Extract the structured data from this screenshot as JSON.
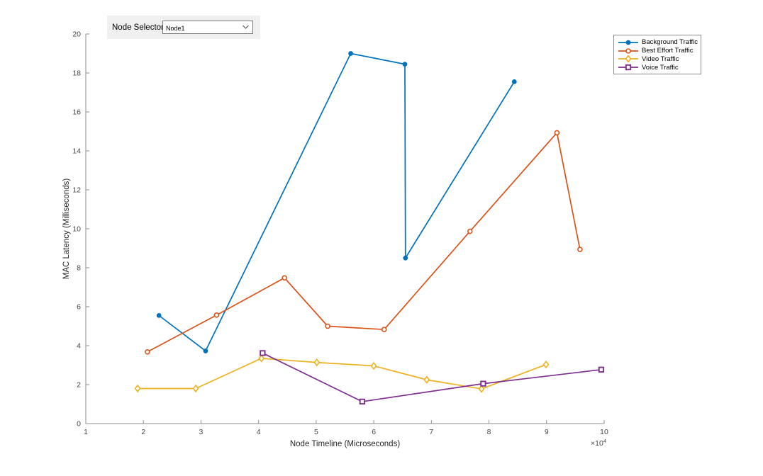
{
  "controls": {
    "node_selector_label": "Node Selector:",
    "node_selector_value": "Node1"
  },
  "chart_data": {
    "type": "line",
    "title": "",
    "xlabel": "Node Timeline (Microseconds)",
    "ylabel": "MAC Latency (Milliseconds)",
    "x_exponent": {
      "base": "×10",
      "power": "4"
    },
    "xlim": [
      1,
      10
    ],
    "ylim": [
      0,
      20
    ],
    "xticks": [
      1,
      2,
      3,
      4,
      5,
      6,
      7,
      8,
      9,
      10
    ],
    "yticks": [
      0,
      2,
      4,
      6,
      8,
      10,
      12,
      14,
      16,
      18,
      20
    ],
    "grid": false,
    "legend_position": "outside-top-right",
    "x_units_note": "x values are in units of 1e4 microseconds as labeled on the axis",
    "series": [
      {
        "name": "Background Traffic",
        "color": "#0072BD",
        "marker": "circle-filled",
        "x": [
          2.27,
          3.08,
          5.6,
          6.54,
          6.55,
          8.44
        ],
        "y": [
          5.55,
          3.73,
          19.0,
          18.45,
          8.5,
          17.55
        ]
      },
      {
        "name": "Best Effort Traffic",
        "color": "#D95319",
        "marker": "circle-open",
        "x": [
          2.07,
          3.27,
          4.45,
          5.2,
          6.18,
          7.67,
          9.18,
          9.58
        ],
        "y": [
          3.68,
          5.57,
          7.48,
          5.0,
          4.83,
          9.87,
          14.93,
          8.94
        ]
      },
      {
        "name": "Video Traffic",
        "color": "#EDB120",
        "marker": "diamond-open",
        "x": [
          1.9,
          2.91,
          4.05,
          5.01,
          6.0,
          6.92,
          7.87,
          8.99
        ],
        "y": [
          1.8,
          1.8,
          3.35,
          3.14,
          2.96,
          2.25,
          1.78,
          3.03
        ]
      },
      {
        "name": "Voice Traffic",
        "color": "#7E2F8E",
        "marker": "square-open",
        "x": [
          4.07,
          5.8,
          7.9,
          9.95
        ],
        "y": [
          3.62,
          1.13,
          2.05,
          2.77
        ]
      }
    ],
    "axis_colors": {
      "line": "#8f8f8f",
      "tick_label": "#454545",
      "axis_label": "#262626"
    }
  }
}
